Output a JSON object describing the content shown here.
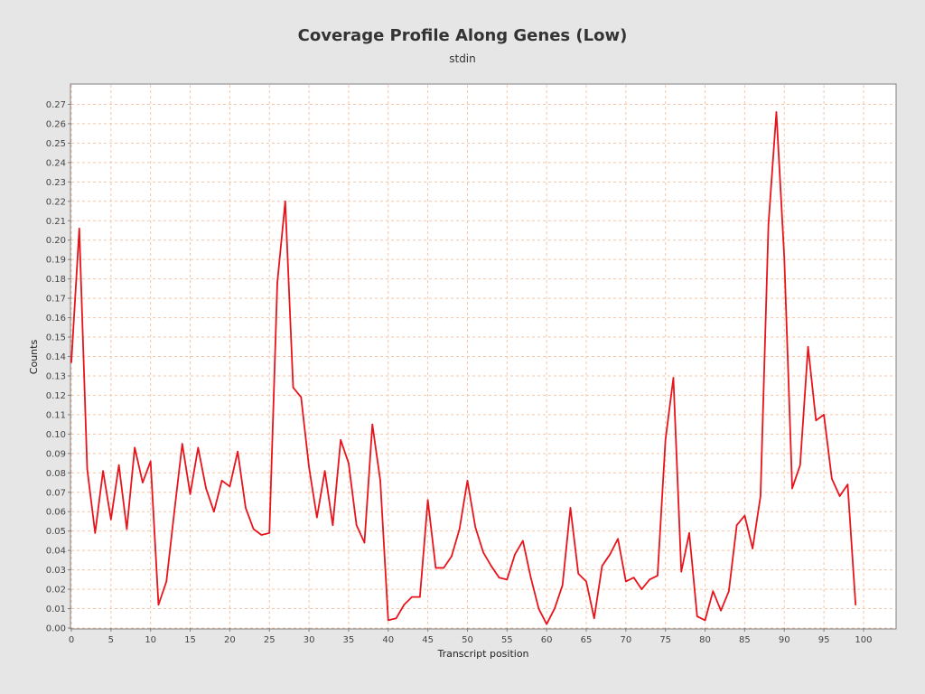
{
  "chart_data": {
    "type": "line",
    "title": "Coverage Profile Along Genes (Low)",
    "subtitle": "stdin",
    "xlabel": "Transcript position",
    "ylabel": "Counts",
    "xlim": [
      0,
      104
    ],
    "ylim": [
      0,
      0.28
    ],
    "x_ticks": [
      0,
      5,
      10,
      15,
      20,
      25,
      30,
      35,
      40,
      45,
      50,
      55,
      60,
      65,
      70,
      75,
      80,
      85,
      90,
      95,
      100
    ],
    "y_ticks": [
      "0.00",
      "0.01",
      "0.02",
      "0.03",
      "0.04",
      "0.05",
      "0.06",
      "0.07",
      "0.08",
      "0.09",
      "0.10",
      "0.11",
      "0.12",
      "0.13",
      "0.14",
      "0.15",
      "0.16",
      "0.17",
      "0.18",
      "0.19",
      "0.20",
      "0.21",
      "0.22",
      "0.23",
      "0.24",
      "0.25",
      "0.26",
      "0.27"
    ],
    "grid": true,
    "series": [
      {
        "color": "#e8141c",
        "x": [
          0,
          1,
          2,
          3,
          4,
          5,
          6,
          7,
          8,
          9,
          10,
          11,
          12,
          13,
          14,
          15,
          16,
          17,
          18,
          19,
          20,
          21,
          22,
          23,
          24,
          25,
          26,
          27,
          28,
          29,
          30,
          31,
          32,
          33,
          34,
          35,
          36,
          37,
          38,
          39,
          40,
          41,
          42,
          43,
          44,
          45,
          46,
          47,
          48,
          49,
          50,
          51,
          52,
          53,
          54,
          55,
          56,
          57,
          58,
          59,
          60,
          61,
          62,
          63,
          64,
          65,
          66,
          67,
          68,
          69,
          70,
          71,
          72,
          73,
          74,
          75,
          76,
          77,
          78,
          79,
          80,
          81,
          82,
          83,
          84,
          85,
          86,
          87,
          88,
          89,
          90,
          91,
          92,
          93,
          94,
          95,
          96,
          97,
          98,
          99
        ],
        "y": [
          0.137,
          0.206,
          0.082,
          0.049,
          0.081,
          0.056,
          0.084,
          0.051,
          0.093,
          0.075,
          0.086,
          0.012,
          0.024,
          0.06,
          0.095,
          0.069,
          0.093,
          0.072,
          0.06,
          0.076,
          0.073,
          0.091,
          0.062,
          0.051,
          0.048,
          0.049,
          0.178,
          0.22,
          0.124,
          0.119,
          0.083,
          0.057,
          0.081,
          0.053,
          0.097,
          0.085,
          0.053,
          0.044,
          0.105,
          0.076,
          0.004,
          0.005,
          0.012,
          0.016,
          0.016,
          0.066,
          0.031,
          0.031,
          0.037,
          0.051,
          0.076,
          0.052,
          0.039,
          0.032,
          0.026,
          0.025,
          0.038,
          0.045,
          0.026,
          0.01,
          0.002,
          0.01,
          0.022,
          0.062,
          0.028,
          0.024,
          0.005,
          0.032,
          0.038,
          0.046,
          0.024,
          0.026,
          0.02,
          0.025,
          0.027,
          0.097,
          0.129,
          0.029,
          0.049,
          0.006,
          0.004,
          0.019,
          0.009,
          0.019,
          0.053,
          0.058,
          0.041,
          0.068,
          0.208,
          0.266,
          0.191,
          0.072,
          0.084,
          0.145,
          0.107,
          0.11,
          0.077,
          0.068,
          0.074,
          0.012
        ]
      }
    ]
  }
}
